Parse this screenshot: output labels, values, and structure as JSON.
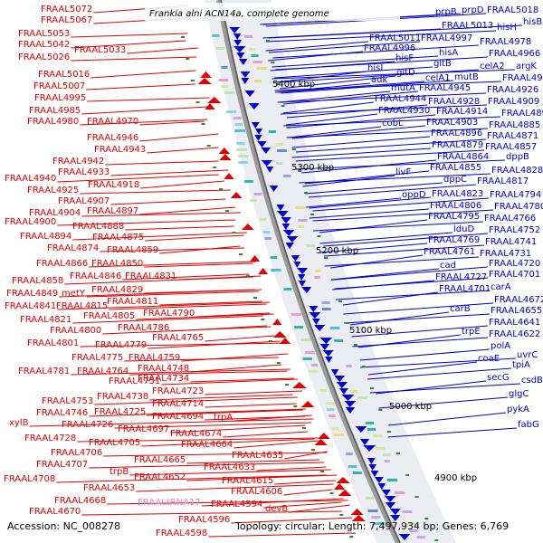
{
  "title": "Frankia alni ACN14a, complete genome",
  "footer": {
    "accession": "Accession: NC_008278",
    "summary": "Topology: circular; Length: 7,497,934 bp; Genes: 6,769"
  },
  "colors": {
    "reverse_strand": "#e00000",
    "forward_strand": "#0000cc",
    "trna": "#e080c0",
    "backbone": "#808080",
    "slider": "#e8e8ee",
    "tick": "#2a8a2a"
  },
  "scale_labels": [
    "5400 kbp",
    "5300 kbp",
    "5200 kbp",
    "5100 kbp",
    "5000 kbp",
    "4900 kbp"
  ],
  "left_labels": [
    {
      "text": "FRAAL5072"
    },
    {
      "text": "FRAAL5067"
    },
    {
      "text": "FRAAL5053"
    },
    {
      "text": "FRAAL5042"
    },
    {
      "text": "FRAAL5033"
    },
    {
      "text": "FRAAL5026"
    },
    {
      "text": "FRAAL5016"
    },
    {
      "text": "FRAAL5007"
    },
    {
      "text": "FRAAL4995"
    },
    {
      "text": "FRAAL4985"
    },
    {
      "text": "FRAAL4980"
    },
    {
      "text": "FRAAL4970"
    },
    {
      "text": "FRAAL4946"
    },
    {
      "text": "FRAAL4943"
    },
    {
      "text": "FRAAL4942"
    },
    {
      "text": "FRAAL4940"
    },
    {
      "text": "FRAAL4933"
    },
    {
      "text": "FRAAL4925"
    },
    {
      "text": "FRAAL4918"
    },
    {
      "text": "FRAAL4907"
    },
    {
      "text": "FRAAL4904"
    },
    {
      "text": "FRAAL4897"
    },
    {
      "text": "FRAAL4900"
    },
    {
      "text": "FRAAL4888"
    },
    {
      "text": "FRAAL4894"
    },
    {
      "text": "FRAAL4875"
    },
    {
      "text": "FRAAL4874"
    },
    {
      "text": "FRAAL4859"
    },
    {
      "text": "FRAAL4866"
    },
    {
      "text": "FRAAL4850"
    },
    {
      "text": "FRAAL4858"
    },
    {
      "text": "FRAAL4846"
    },
    {
      "text": "FRAAL4831"
    },
    {
      "text": "FRAAL4849"
    },
    {
      "text": "metY"
    },
    {
      "text": "FRAAL4829"
    },
    {
      "text": "FRAAL4841"
    },
    {
      "text": "FRAAL4815"
    },
    {
      "text": "FRAAL4811"
    },
    {
      "text": "FRAAL4821"
    },
    {
      "text": "FRAAL4805"
    },
    {
      "text": "FRAAL4790"
    },
    {
      "text": "FRAAL4800"
    },
    {
      "text": "FRAAL4786"
    },
    {
      "text": "FRAAL4801"
    },
    {
      "text": "FRAAL4779"
    },
    {
      "text": "FRAAL4765"
    },
    {
      "text": "FRAAL4775"
    },
    {
      "text": "FRAAL4759"
    },
    {
      "text": "FRAAL4781"
    },
    {
      "text": "FRAAL4764"
    },
    {
      "text": "FRAAL4748"
    },
    {
      "text": "FRAAL4751"
    },
    {
      "text": "FRAAL4734"
    },
    {
      "text": "FRAAL4753"
    },
    {
      "text": "FRAAL4738"
    },
    {
      "text": "FRAAL4723"
    },
    {
      "text": "FRAAL4746"
    },
    {
      "text": "FRAAL4725"
    },
    {
      "text": "FRAAL4714"
    },
    {
      "text": "xylB"
    },
    {
      "text": "FRAAL4726"
    },
    {
      "text": "FRAAL4694"
    },
    {
      "text": "FRAAL4697"
    },
    {
      "text": "trpA"
    },
    {
      "text": "FRAAL4728"
    },
    {
      "text": "FRAAL4705"
    },
    {
      "text": "FRAAL4674"
    },
    {
      "text": "FRAAL4706"
    },
    {
      "text": "FRAAL4664"
    },
    {
      "text": "FRAAL4707"
    },
    {
      "text": "FRAAL4665"
    },
    {
      "text": "FRAAL4635"
    },
    {
      "text": "trpB"
    },
    {
      "text": "FRAAL4633"
    },
    {
      "text": "FRAAL4708"
    },
    {
      "text": "FRAAL4652"
    },
    {
      "text": "FRAAL4615"
    },
    {
      "text": "FRAAL4653"
    },
    {
      "text": "FRAAL4606"
    },
    {
      "text": "FRAAL4668"
    },
    {
      "text": "FRAALtRNA17"
    },
    {
      "text": "FRAAL4594"
    },
    {
      "text": "FRAAL4670"
    },
    {
      "text": "devB"
    },
    {
      "text": "FRAAL4596"
    },
    {
      "text": "FRAAL4598"
    }
  ],
  "right_labels": [
    {
      "text": "prpB"
    },
    {
      "text": "prpD"
    },
    {
      "text": "FRAAL5018"
    },
    {
      "text": "FRAAL5013"
    },
    {
      "text": "hisH"
    },
    {
      "text": "hisB"
    },
    {
      "text": "FRAAL5011"
    },
    {
      "text": "FRAAL4997"
    },
    {
      "text": "FRAAL4978"
    },
    {
      "text": "FRAAL4996"
    },
    {
      "text": "hisA"
    },
    {
      "text": "FRAAL4966"
    },
    {
      "text": "hisF"
    },
    {
      "text": "gltB"
    },
    {
      "text": "celA2"
    },
    {
      "text": "argK"
    },
    {
      "text": "hisI"
    },
    {
      "text": "gltD"
    },
    {
      "text": "adk"
    },
    {
      "text": "celA1"
    },
    {
      "text": "mutB"
    },
    {
      "text": "FRAAL4941"
    },
    {
      "text": "mutA"
    },
    {
      "text": "FRAAL4945"
    },
    {
      "text": "FRAAL4926"
    },
    {
      "text": "FRAAL4944"
    },
    {
      "text": "FRAAL4928"
    },
    {
      "text": "FRAAL4909"
    },
    {
      "text": "FRAAL4930"
    },
    {
      "text": "FRAAL4914"
    },
    {
      "text": "FRAAL4898"
    },
    {
      "text": "cobL"
    },
    {
      "text": "FRAAL4903"
    },
    {
      "text": "FRAAL4885"
    },
    {
      "text": "FRAAL4896"
    },
    {
      "text": "FRAAL4871"
    },
    {
      "text": "FRAAL4879"
    },
    {
      "text": "FRAAL4857"
    },
    {
      "text": "FRAAL4864"
    },
    {
      "text": "dppB"
    },
    {
      "text": "livF"
    },
    {
      "text": "FRAAL4855"
    },
    {
      "text": "FRAAL4828"
    },
    {
      "text": "dppC"
    },
    {
      "text": "FRAAL4817"
    },
    {
      "text": "oppD"
    },
    {
      "text": "FRAAL4823"
    },
    {
      "text": "FRAAL4794"
    },
    {
      "text": "FRAAL4806"
    },
    {
      "text": "FRAAL4780"
    },
    {
      "text": "FRAAL4795"
    },
    {
      "text": "FRAAL4766"
    },
    {
      "text": "lduD"
    },
    {
      "text": "FRAAL4752"
    },
    {
      "text": "FRAAL4769"
    },
    {
      "text": "FRAAL4741"
    },
    {
      "text": "FRAAL4761"
    },
    {
      "text": "FRAAL4731"
    },
    {
      "text": "cad"
    },
    {
      "text": "FRAAL4720"
    },
    {
      "text": "FRAAL4727"
    },
    {
      "text": "FRAAL4701"
    },
    {
      "text": "FRAAL4701"
    },
    {
      "text": "carA"
    },
    {
      "text": "FRAAL4672"
    },
    {
      "text": "carB"
    },
    {
      "text": "FRAAL4655"
    },
    {
      "text": "FRAAL4641"
    },
    {
      "text": "trpE"
    },
    {
      "text": "FRAAL4622"
    },
    {
      "text": "polA"
    },
    {
      "text": "coaE"
    },
    {
      "text": "uvrC"
    },
    {
      "text": "tpiA"
    },
    {
      "text": "secG"
    },
    {
      "text": "csdB"
    },
    {
      "text": "glgC"
    },
    {
      "text": "pykA"
    },
    {
      "text": "fabG"
    }
  ]
}
